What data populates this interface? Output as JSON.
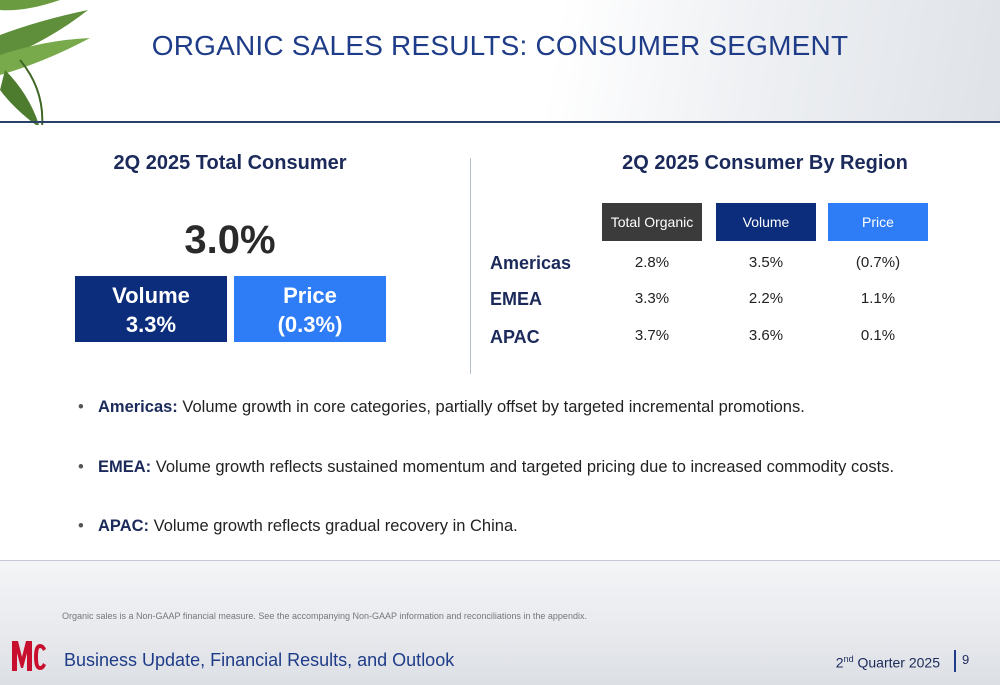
{
  "title": "ORGANIC SALES RESULTS: CONSUMER SEGMENT",
  "total": {
    "heading": "2Q 2025 Total Consumer",
    "value": "3.0%",
    "volume_label": "Volume",
    "volume_value": "3.3%",
    "price_label": "Price",
    "price_value": "(0.3%)"
  },
  "region": {
    "heading": "2Q 2025 Consumer By Region",
    "columns": [
      "Total Organic",
      "Volume",
      "Price"
    ],
    "rows": [
      {
        "name": "Americas",
        "values": [
          "2.8%",
          "3.5%",
          "(0.7%)"
        ]
      },
      {
        "name": "EMEA",
        "values": [
          "3.3%",
          "2.2%",
          "1.1%"
        ]
      },
      {
        "name": "APAC",
        "values": [
          "3.7%",
          "3.6%",
          "0.1%"
        ]
      }
    ]
  },
  "bullets": [
    {
      "label": "Americas:",
      "text": " Volume growth in core categories, partially offset by targeted incremental promotions."
    },
    {
      "label": "EMEA:",
      "text": " Volume growth reflects sustained momentum and targeted pricing due to increased commodity costs."
    },
    {
      "label": "APAC:",
      "text": " Volume growth reflects gradual recovery in China."
    }
  ],
  "footer": {
    "note": "Organic sales is a Non-GAAP financial measure. See the accompanying Non-GAAP information and reconciliations in the appendix.",
    "left": "Business Update, Financial Results, and Outlook",
    "quarter_num": "2",
    "quarter_sup": "nd",
    "quarter_rest": " Quarter 2025",
    "page": "9"
  },
  "colors": {
    "navy": "#0b2d7c",
    "blue": "#2e7cf6",
    "dark_gray": "#3b3b3b",
    "logo_red": "#c8102e"
  }
}
